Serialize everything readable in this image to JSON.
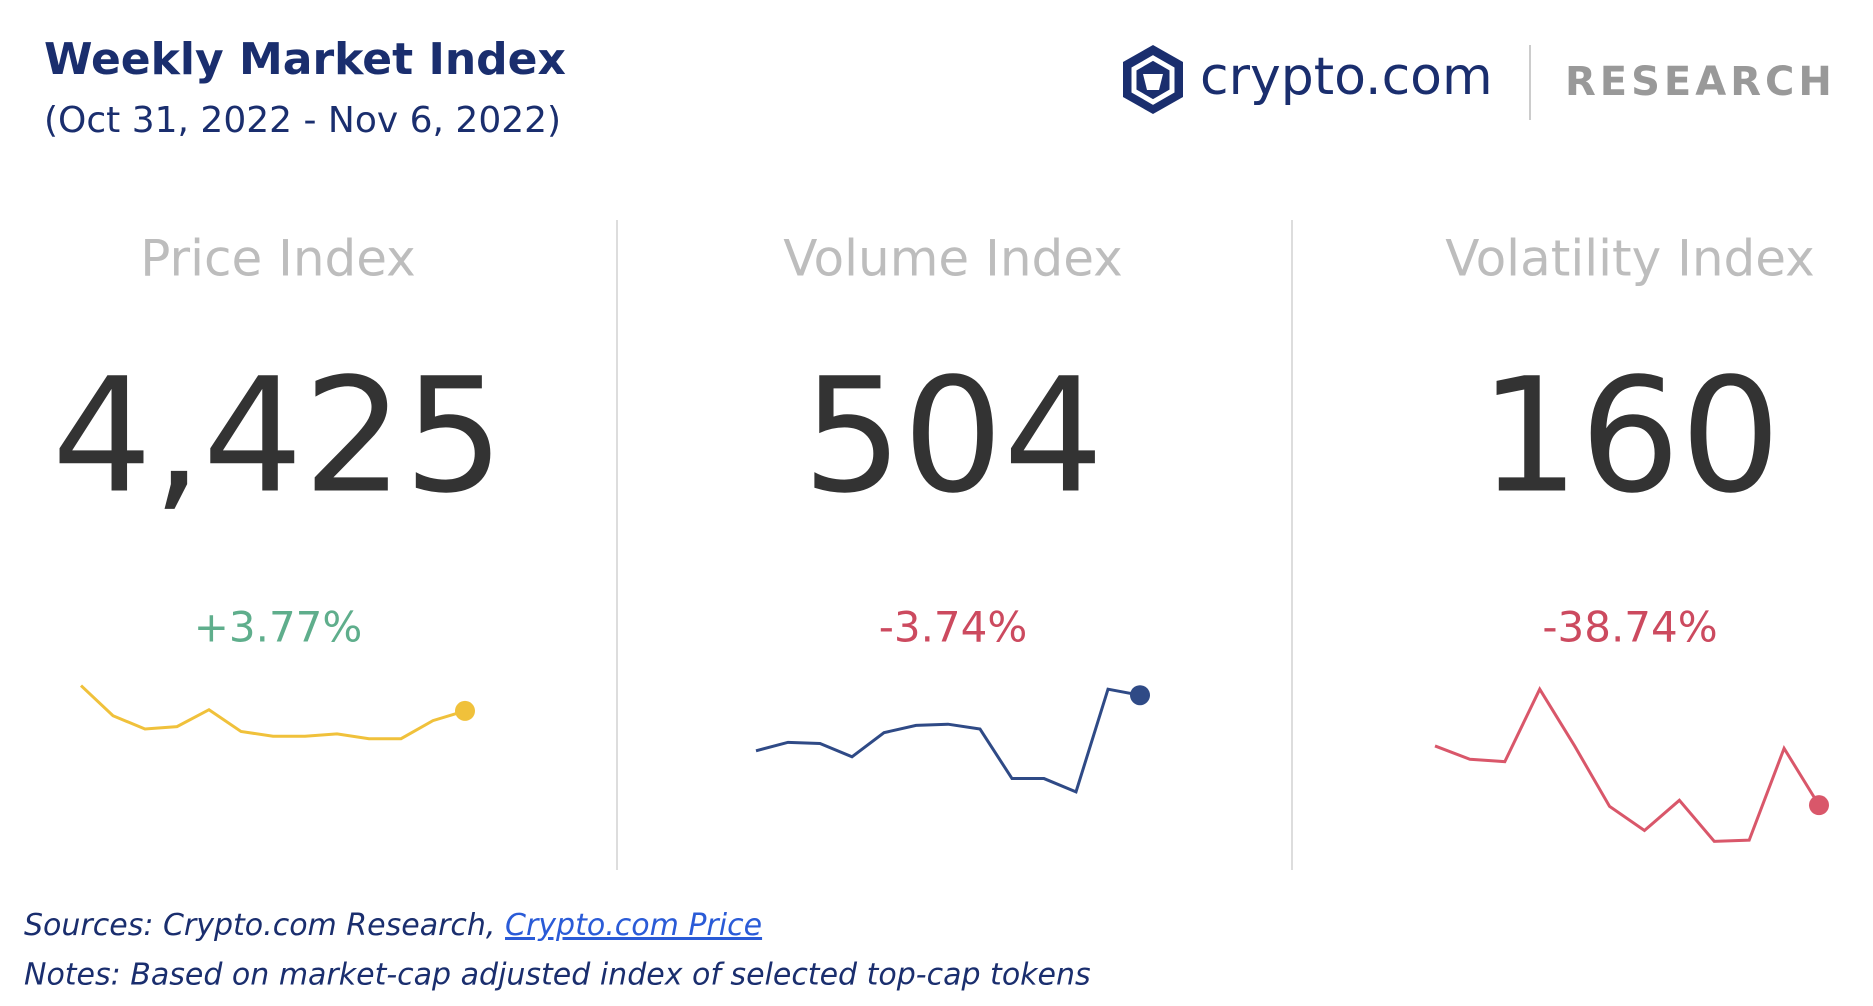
{
  "header": {
    "title": "Weekly Market Index",
    "subtitle": "(Oct 31, 2022 - Nov 6, 2022)",
    "brand": "crypto.com",
    "brand_section": "RESEARCH"
  },
  "cards": [
    {
      "title": "Price Index",
      "value": "4,425",
      "change": "+3.77%",
      "change_color": "#5fae8c",
      "line_color": "#f0c13b",
      "trend": [
        132,
        107,
        96,
        98,
        112,
        94,
        90,
        90,
        92,
        88,
        88,
        103,
        111
      ]
    },
    {
      "title": "Volume Index",
      "value": "504",
      "change": "-3.74%",
      "change_color": "#cc4a5f",
      "line_color": "#2f4a86",
      "trend": [
        78,
        85,
        84,
        73,
        93,
        99,
        100,
        96,
        55,
        55,
        44,
        129,
        124
      ]
    },
    {
      "title": "Volatility Index",
      "value": "160",
      "change": "-38.74%",
      "change_color": "#cc4a5f",
      "line_color": "#d9576a",
      "trend": [
        82,
        71,
        69,
        129,
        82,
        32,
        12,
        37,
        3,
        4,
        80,
        33
      ]
    }
  ],
  "footer": {
    "sources_prefix": "Sources: Crypto.com Research, ",
    "sources_link": "Crypto.com Price",
    "notes": "Notes: Based on market-cap adjusted index of selected top-cap tokens"
  }
}
